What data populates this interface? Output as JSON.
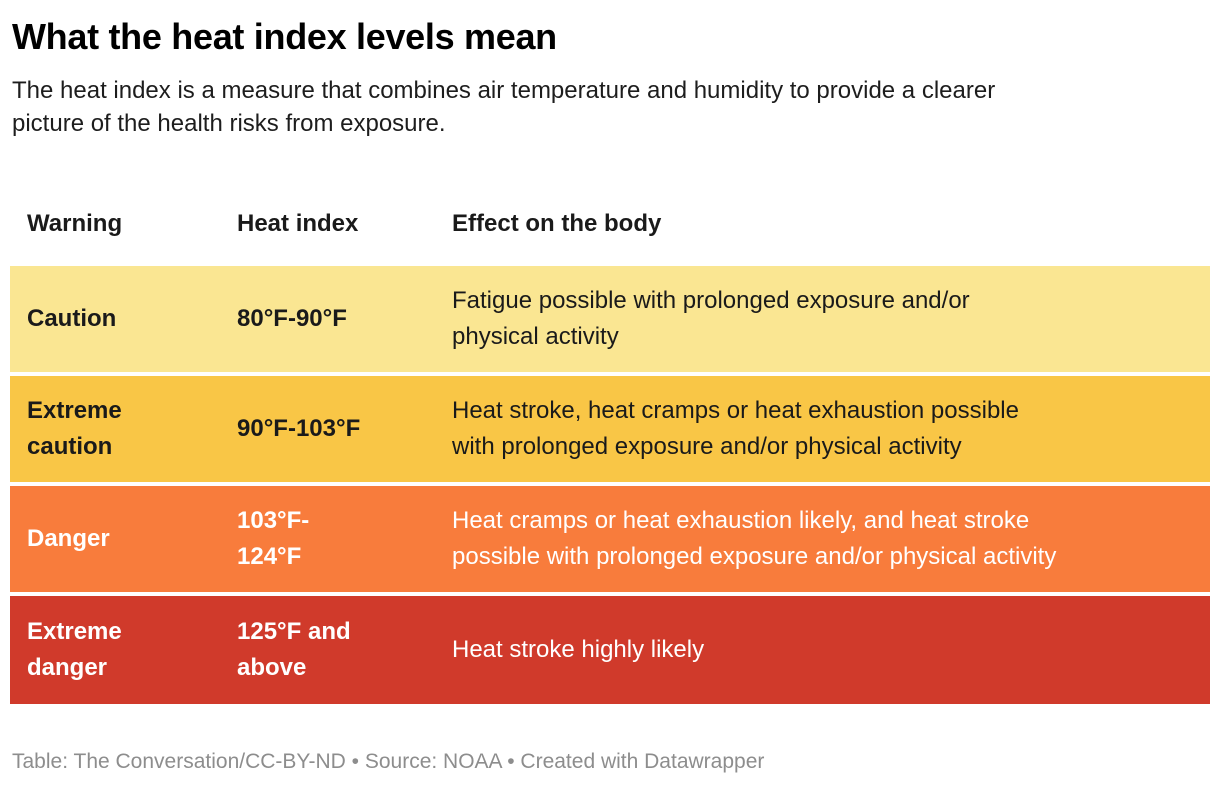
{
  "header": {
    "title": "What the heat index levels mean",
    "description": "The heat index is a measure that combines air temperature and humidity to provide a clearer\npicture of the health risks from exposure."
  },
  "table": {
    "columns": [
      "Warning",
      "Heat index",
      "Effect on the body"
    ],
    "rows": [
      {
        "warning": "Caution",
        "heat_index": "80°F-90°F",
        "effect": "Fatigue possible with prolonged exposure and/or\nphysical activity",
        "bg": "#FAE692",
        "fg": "#1a1a1a"
      },
      {
        "warning": "Extreme\ncaution",
        "heat_index": "90°F-103°F",
        "effect": "Heat stroke, heat cramps or heat exhaustion possible\nwith prolonged exposure and/or physical activity",
        "bg": "#F9C646",
        "fg": "#1a1a1a"
      },
      {
        "warning": "Danger",
        "heat_index": "103°F-\n124°F",
        "effect": "Heat cramps or heat exhaustion likely, and heat stroke\npossible with prolonged exposure and/or physical activity",
        "bg": "#F87C3C",
        "fg": "#ffffff"
      },
      {
        "warning": "Extreme\ndanger",
        "heat_index": "125°F and\nabove",
        "effect": "Heat stroke highly likely",
        "bg": "#D03A2B",
        "fg": "#ffffff"
      }
    ]
  },
  "footer": {
    "text": "Table: The Conversation/CC-BY-ND • Source: NOAA • Created with Datawrapper"
  },
  "chart_data": {
    "type": "table",
    "title": "What the heat index levels mean",
    "description": "The heat index is a measure that combines air temperature and humidity to provide a clearer picture of the health risks from exposure.",
    "columns": [
      "Warning",
      "Heat index",
      "Effect on the body"
    ],
    "rows": [
      [
        "Caution",
        "80°F-90°F",
        "Fatigue possible with prolonged exposure and/or physical activity"
      ],
      [
        "Extreme caution",
        "90°F-103°F",
        "Heat stroke, heat cramps or heat exhaustion possible with prolonged exposure and/or physical activity"
      ],
      [
        "Danger",
        "103°F-124°F",
        "Heat cramps or heat exhaustion likely, and heat stroke possible with prolonged exposure and/or physical activity"
      ],
      [
        "Extreme danger",
        "125°F and above",
        "Heat stroke highly likely"
      ]
    ],
    "row_colors": [
      "#FAE692",
      "#F9C646",
      "#F87C3C",
      "#D03A2B"
    ],
    "row_text_colors": [
      "#1a1a1a",
      "#1a1a1a",
      "#ffffff",
      "#ffffff"
    ],
    "byline": "The Conversation/CC-BY-ND",
    "source": "NOAA",
    "tool": "Datawrapper"
  }
}
